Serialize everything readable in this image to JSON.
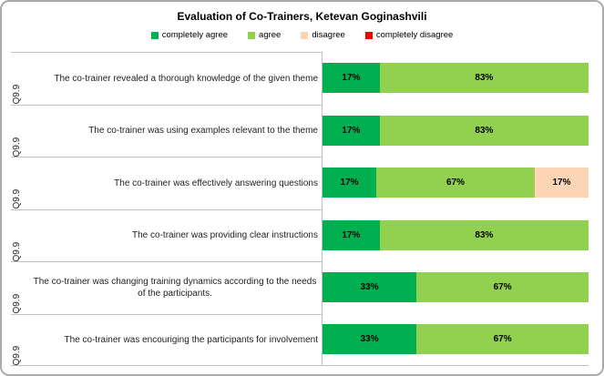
{
  "title": "Evaluation of Co-Trainers, Ketevan Goginashvili",
  "legend": [
    {
      "label": "completely agree",
      "color": "#00B050"
    },
    {
      "label": "agree",
      "color": "#92D050"
    },
    {
      "label": "disagree",
      "color": "#FBD5B5"
    },
    {
      "label": "completely disagree",
      "color": "#FF0000"
    }
  ],
  "chart_data": {
    "type": "bar",
    "orientation": "horizontal-stacked",
    "title": "Evaluation of Co-Trainers, Ketevan Goginashvili",
    "legend_position": "top",
    "grid": false,
    "xlim": [
      0,
      100
    ],
    "value_suffix": "%",
    "category_ids": [
      "Q9.9",
      "Q9.9",
      "Q9.9",
      "Q9.9",
      "Q9.9",
      "Q9.9"
    ],
    "categories": [
      "The co-trainer revealed a thorough knowledge of the given theme",
      "The co-trainer was using examples relevant to the theme",
      "The co-trainer was effectively answering questions",
      "The co-trainer was providing clear instructions",
      "The co-trainer was changing training dynamics according to the needs of the participants.",
      "The co-trainer was encouriging the participants for involvement"
    ],
    "series": [
      {
        "name": "completely agree",
        "color": "#00B050",
        "values": [
          17,
          17,
          17,
          17,
          33,
          33
        ]
      },
      {
        "name": "agree",
        "color": "#92D050",
        "values": [
          83,
          83,
          67,
          83,
          67,
          67
        ]
      },
      {
        "name": "disagree",
        "color": "#FBD5B5",
        "values": [
          0,
          0,
          17,
          0,
          0,
          0
        ]
      },
      {
        "name": "completely disagree",
        "color": "#FF0000",
        "values": [
          0,
          0,
          0,
          0,
          0,
          0
        ]
      }
    ]
  }
}
